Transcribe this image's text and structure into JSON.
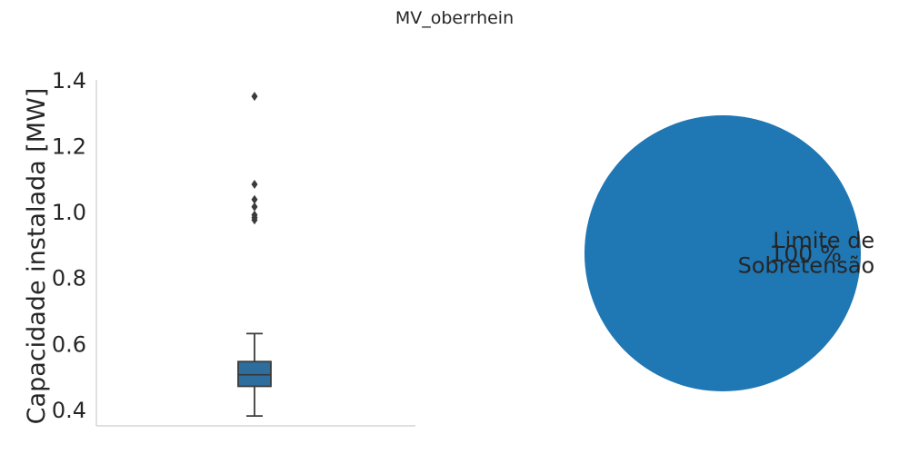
{
  "figure": {
    "suptitle": "MV_oberrhein"
  },
  "chart_data": [
    {
      "type": "box",
      "ylabel": "Capacidade instalada [MW]",
      "xlabel": "",
      "ylim": [
        0.35,
        1.4
      ],
      "yticks": [
        0.4,
        0.6,
        0.8,
        1.0,
        1.2,
        1.4
      ],
      "ytick_labels": [
        "0.4",
        "0.6",
        "0.8",
        "1.0",
        "1.2",
        "1.4"
      ],
      "grid": false,
      "box": {
        "whisker_low": 0.38,
        "q1": 0.47,
        "median": 0.505,
        "q3": 0.545,
        "whisker_high": 0.63,
        "outliers": [
          1.35,
          1.083,
          1.037,
          1.015,
          0.99,
          0.982,
          0.975
        ],
        "color": "#2e6e9e"
      }
    },
    {
      "type": "pie",
      "slices": [
        {
          "label": "Limite de\nSobretensão",
          "label_lines": [
            "Limite de",
            "Sobretensão"
          ],
          "value": 100,
          "pct_label": "100 %",
          "color": "#1f77b4"
        }
      ]
    }
  ]
}
